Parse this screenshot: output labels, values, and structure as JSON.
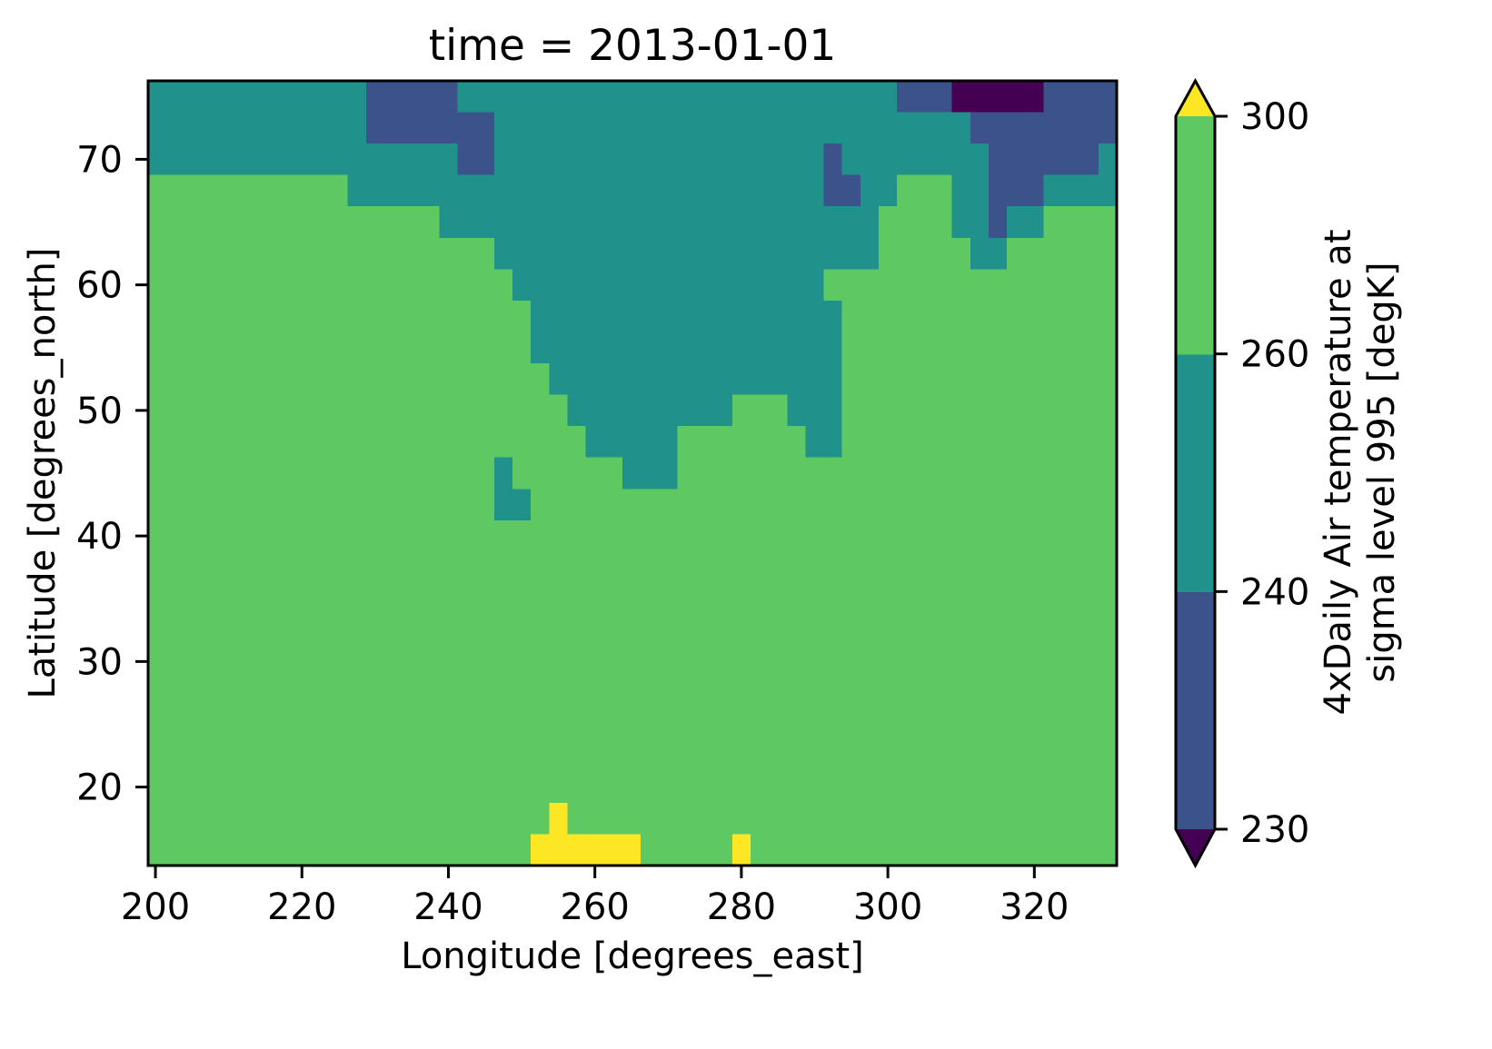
{
  "chart_data": {
    "type": "heatmap",
    "title": "time = 2013-01-01",
    "xlabel": "Longitude [degrees_east]",
    "ylabel": "Latitude [degrees_north]",
    "xlim": [
      199,
      331.25
    ],
    "ylim": [
      13.75,
      76.25
    ],
    "xticks": [
      200,
      220,
      240,
      260,
      280,
      300,
      320
    ],
    "yticks": [
      20,
      30,
      40,
      50,
      60,
      70
    ],
    "grid": false,
    "grid_spacing_deg": 2.5,
    "levels": [
      230,
      240,
      260,
      300
    ],
    "extend": "both",
    "colors": [
      "#440154",
      "#3b528b",
      "#21918c",
      "#5ec962",
      "#fde725"
    ],
    "colorbar": {
      "label": [
        "4xDaily Air temperature at",
        "sigma level 995 [degK]"
      ],
      "placement": "right"
    },
    "rows": [
      {
        "lat": 75,
        "runs": [
          [
            200,
            227.5,
            2
          ],
          [
            230,
            240,
            1
          ],
          [
            242.5,
            300,
            2
          ],
          [
            302.5,
            307.5,
            1
          ],
          [
            310,
            320,
            0
          ],
          [
            322.5,
            330,
            1
          ]
        ]
      },
      {
        "lat": 72.5,
        "runs": [
          [
            200,
            227.5,
            2
          ],
          [
            230,
            245,
            1
          ],
          [
            247.5,
            310,
            2
          ],
          [
            312.5,
            330,
            1
          ]
        ]
      },
      {
        "lat": 70,
        "runs": [
          [
            200,
            240,
            2
          ],
          [
            242.5,
            245,
            1
          ],
          [
            247.5,
            290,
            2
          ],
          [
            292.5,
            292.5,
            1
          ],
          [
            295,
            312.5,
            2
          ],
          [
            315,
            327.5,
            1
          ],
          [
            330,
            330,
            2
          ]
        ]
      },
      {
        "lat": 67.5,
        "runs": [
          [
            200,
            225,
            3
          ],
          [
            227.5,
            290,
            2
          ],
          [
            292.5,
            295,
            1
          ],
          [
            297.5,
            300,
            2
          ],
          [
            302.5,
            307.5,
            3
          ],
          [
            310,
            312.5,
            2
          ],
          [
            315,
            320,
            1
          ],
          [
            322.5,
            330,
            2
          ]
        ]
      },
      {
        "lat": 65,
        "runs": [
          [
            200,
            237.5,
            3
          ],
          [
            240,
            297.5,
            2
          ],
          [
            300,
            307.5,
            3
          ],
          [
            310,
            312.5,
            2
          ],
          [
            315,
            315,
            1
          ],
          [
            317.5,
            320,
            2
          ],
          [
            322.5,
            330,
            3
          ]
        ]
      },
      {
        "lat": 62.5,
        "runs": [
          [
            200,
            245,
            3
          ],
          [
            247.5,
            297.5,
            2
          ],
          [
            300,
            310,
            3
          ],
          [
            312.5,
            315,
            2
          ],
          [
            317.5,
            330,
            3
          ]
        ]
      },
      {
        "lat": 60,
        "runs": [
          [
            200,
            247.5,
            3
          ],
          [
            250,
            290,
            2
          ],
          [
            292.5,
            330,
            3
          ]
        ]
      },
      {
        "lat": 57.5,
        "runs": [
          [
            200,
            250,
            3
          ],
          [
            252.5,
            292.5,
            2
          ],
          [
            295,
            330,
            3
          ]
        ]
      },
      {
        "lat": 55,
        "runs": [
          [
            200,
            250,
            3
          ],
          [
            252.5,
            292.5,
            2
          ],
          [
            295,
            330,
            3
          ]
        ]
      },
      {
        "lat": 52.5,
        "runs": [
          [
            200,
            252.5,
            3
          ],
          [
            255,
            292.5,
            2
          ],
          [
            295,
            330,
            3
          ]
        ]
      },
      {
        "lat": 50,
        "runs": [
          [
            200,
            255,
            3
          ],
          [
            257.5,
            277.5,
            2
          ],
          [
            280,
            285,
            3
          ],
          [
            287.5,
            292.5,
            2
          ],
          [
            295,
            330,
            3
          ]
        ]
      },
      {
        "lat": 47.5,
        "runs": [
          [
            200,
            257.5,
            3
          ],
          [
            260,
            270,
            2
          ],
          [
            272.5,
            287.5,
            3
          ],
          [
            290,
            292.5,
            2
          ],
          [
            295,
            330,
            3
          ]
        ]
      },
      {
        "lat": 45,
        "runs": [
          [
            200,
            245,
            3
          ],
          [
            247.5,
            247.5,
            2
          ],
          [
            250,
            262.5,
            3
          ],
          [
            265,
            270,
            2
          ],
          [
            272.5,
            330,
            3
          ]
        ]
      },
      {
        "lat": 42.5,
        "runs": [
          [
            200,
            245,
            3
          ],
          [
            247.5,
            250,
            2
          ],
          [
            252.5,
            330,
            3
          ]
        ]
      },
      {
        "lat": 40,
        "runs": [
          [
            200,
            330,
            3
          ]
        ]
      },
      {
        "lat": 37.5,
        "runs": [
          [
            200,
            330,
            3
          ]
        ]
      },
      {
        "lat": 35,
        "runs": [
          [
            200,
            330,
            3
          ]
        ]
      },
      {
        "lat": 32.5,
        "runs": [
          [
            200,
            330,
            3
          ]
        ]
      },
      {
        "lat": 30,
        "runs": [
          [
            200,
            330,
            3
          ]
        ]
      },
      {
        "lat": 27.5,
        "runs": [
          [
            200,
            330,
            3
          ]
        ]
      },
      {
        "lat": 25,
        "runs": [
          [
            200,
            330,
            3
          ]
        ]
      },
      {
        "lat": 22.5,
        "runs": [
          [
            200,
            330,
            3
          ]
        ]
      },
      {
        "lat": 20,
        "runs": [
          [
            200,
            330,
            3
          ]
        ]
      },
      {
        "lat": 17.5,
        "runs": [
          [
            200,
            252.5,
            3
          ],
          [
            255,
            255,
            4
          ],
          [
            257.5,
            330,
            3
          ]
        ]
      },
      {
        "lat": 15,
        "runs": [
          [
            200,
            250,
            3
          ],
          [
            252.5,
            265,
            4
          ],
          [
            267.5,
            277.5,
            3
          ],
          [
            280,
            280,
            4
          ],
          [
            282.5,
            330,
            3
          ]
        ]
      }
    ]
  }
}
